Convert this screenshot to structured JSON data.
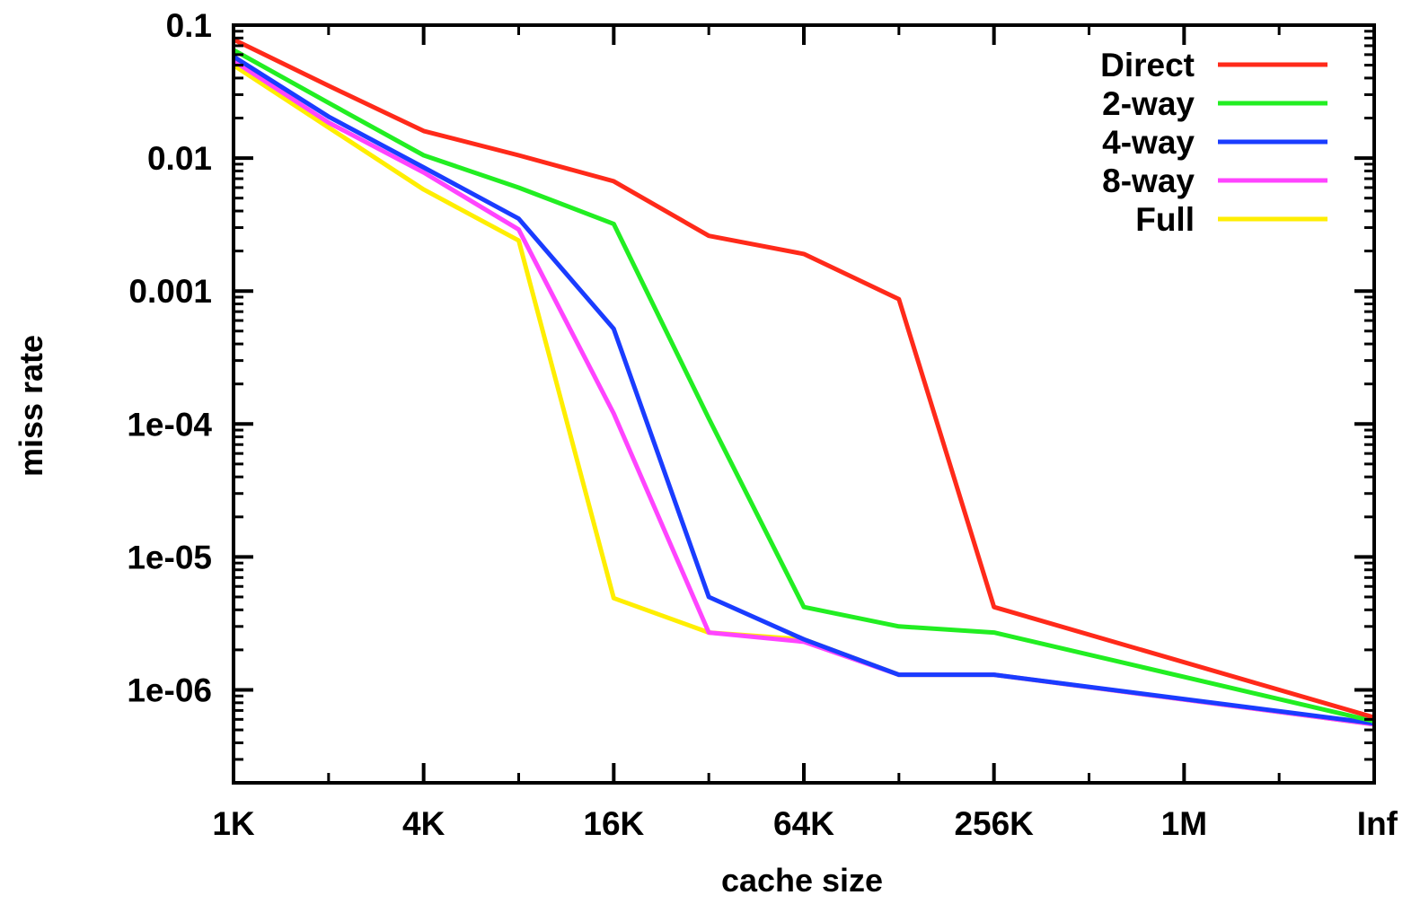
{
  "chart_data": {
    "type": "line",
    "title": "",
    "xlabel": "cache size",
    "ylabel": "miss rate",
    "x_categories": [
      "1K",
      "",
      "4K",
      "",
      "16K",
      "",
      "64K",
      "",
      "256K",
      "",
      "1M",
      "",
      "Inf"
    ],
    "x_tick_labels": [
      "1K",
      "4K",
      "16K",
      "64K",
      "256K",
      "1M",
      "Inf"
    ],
    "y_scale": "log",
    "ylim": [
      2e-07,
      0.1
    ],
    "y_tick_values": [
      0.1,
      0.01,
      0.001,
      0.0001,
      1e-05,
      1e-06
    ],
    "y_tick_labels": [
      "0.1",
      "0.01",
      "0.001",
      "1e-04",
      "1e-05",
      "1e-06"
    ],
    "grid": false,
    "legend_position": "top-right",
    "series": [
      {
        "name": "Direct",
        "color": "#ff2a1a",
        "values": [
          0.078,
          0.035,
          0.016,
          0.0105,
          0.0067,
          0.0026,
          0.0019,
          0.00087,
          4.2e-06,
          null,
          null,
          null,
          6.2e-07
        ]
      },
      {
        "name": "2-way",
        "color": "#22ee22",
        "values": [
          0.065,
          0.026,
          0.0105,
          0.006,
          0.0032,
          0.00011,
          4.2e-06,
          3e-06,
          2.7e-06,
          null,
          null,
          null,
          5.8e-07
        ]
      },
      {
        "name": "4-way",
        "color": "#1a3cff",
        "values": [
          0.058,
          0.0205,
          0.0085,
          0.0035,
          0.00052,
          5e-06,
          2.4e-06,
          1.3e-06,
          1.3e-06,
          null,
          null,
          null,
          5.6e-07
        ]
      },
      {
        "name": "8-way",
        "color": "#ff44ff",
        "values": [
          0.054,
          0.0185,
          0.0078,
          0.0029,
          0.00012,
          2.7e-06,
          2.3e-06,
          1.3e-06,
          1.3e-06,
          null,
          null,
          null,
          5.5e-07
        ]
      },
      {
        "name": "Full",
        "color": "#ffee00",
        "values": [
          0.05,
          0.017,
          0.0058,
          0.0024,
          4.9e-06,
          2.7e-06,
          2.4e-06,
          1.3e-06,
          1.3e-06,
          null,
          null,
          null,
          5.5e-07
        ]
      }
    ]
  }
}
